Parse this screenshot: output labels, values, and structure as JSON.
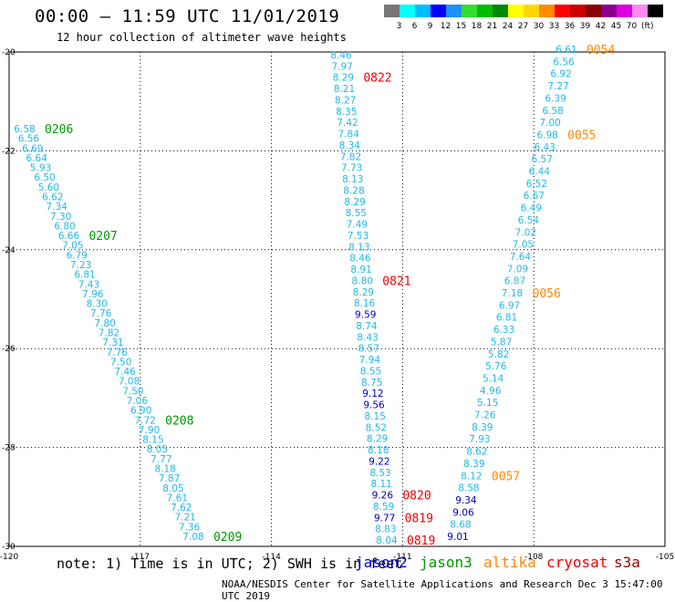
{
  "title": "00:00 – 11:59 UTC 11/01/2019",
  "subtitle": "12 hour collection of altimeter wave heights",
  "color_scale": {
    "colors": [
      "#777777",
      "#00ffff",
      "#00bfff",
      "#0000ff",
      "#1e90ff",
      "#33dd33",
      "#00bb00",
      "#008800",
      "#ffff00",
      "#ffd700",
      "#ff8c00",
      "#ff0000",
      "#cc0000",
      "#8b0000",
      "#8b008b",
      "#dd00dd",
      "#ff88ee",
      "#000000"
    ],
    "labels": [
      "3",
      "6",
      "9",
      "12",
      "15",
      "18",
      "21",
      "24",
      "27",
      "30",
      "33",
      "36",
      "39",
      "42",
      "45",
      "70",
      "(ft)"
    ]
  },
  "map": {
    "lon_ticks": [
      "-120",
      "-117",
      "-114",
      "-111",
      "-108",
      "-105"
    ],
    "lat_ticks": [
      "-20",
      "-22",
      "-24",
      "-26",
      "-28",
      "-30"
    ],
    "passes": [
      {
        "id": "jason3-west",
        "satellite": "jason3",
        "labels": [
          {
            "text": "0206",
            "after_index": 0
          },
          {
            "text": "0207",
            "after_index": 11
          },
          {
            "text": "0208",
            "after_index": 30
          },
          {
            "text": "0209",
            "after_index": 45
          }
        ],
        "values": [
          "6.58",
          "6.56",
          "6.69",
          "6.64",
          "5.93",
          "6.50",
          "5.60",
          "6.62",
          "7.34",
          "7.30",
          "6.80",
          "6.66",
          "7.05",
          "6.79",
          "7.23",
          "6.81",
          "7.43",
          "7.96",
          "8.30",
          "7.76",
          "7.80",
          "7.82",
          "7.31",
          "7.76",
          "7.50",
          "7.46",
          "7.08",
          "7.50",
          "7.06",
          "6.90",
          "7.72",
          "7.90",
          "8.15",
          "8.05",
          "7.77",
          "8.18",
          "7.87",
          "8.05",
          "7.61",
          "7.62",
          "7.21",
          "7.36",
          "7.08"
        ]
      },
      {
        "id": "jason2-middle",
        "satellite": "cryosat",
        "labels": [
          {
            "text": "0822",
            "after_index": 2
          },
          {
            "text": "0821",
            "after_index": 20
          },
          {
            "text": "0820",
            "after_index": 39
          },
          {
            "text": "0819",
            "after_index": 41
          },
          {
            "text": "0819",
            "after_index": 50
          }
        ],
        "values": [
          "8.46",
          "7.97",
          "8.29",
          "8.21",
          "8.27",
          "8.35",
          "7.42",
          "7.84",
          "8.34",
          "7.82",
          "7.73",
          "8.13",
          "8.28",
          "8.29",
          "8.55",
          "7.49",
          "7.53",
          "8.13",
          "8.46",
          "8.91",
          "8.80",
          "8.29",
          "8.16",
          "9.59",
          "8.74",
          "8.43",
          "8.57",
          "7.94",
          "8.55",
          "8.75",
          "9.12",
          "9.56",
          "8.15",
          "8.52",
          "8.29",
          "8.18",
          "9.22",
          "8.53",
          "8.11",
          "9.26",
          "8.59",
          "9.77",
          "8.83",
          "8.04"
        ]
      },
      {
        "id": "altika-east",
        "satellite": "altika",
        "labels": [
          {
            "text": "0054",
            "after_index": 0
          },
          {
            "text": "0055",
            "after_index": 7
          },
          {
            "text": "0056",
            "after_index": 20
          },
          {
            "text": "0057",
            "after_index": 35
          }
        ],
        "values": [
          "6.61",
          "6.56",
          "6.92",
          "7.27",
          "6.39",
          "6.58",
          "7.00",
          "6.98",
          "6.43",
          "6.57",
          "6.44",
          "6.52",
          "6.67",
          "6.49",
          "6.54",
          "7.02",
          "7.05",
          "7.64",
          "7.09",
          "6.87",
          "7.18",
          "6.97",
          "6.81",
          "6.33",
          "5.87",
          "5.82",
          "5.76",
          "5.14",
          "4.96",
          "5.15",
          "7.26",
          "8.39",
          "7.93",
          "8.62",
          "8.39",
          "8.12",
          "8.58",
          "9.34",
          "9.06",
          "8.68",
          "9.01"
        ]
      }
    ]
  },
  "note": "note: 1) Time is in UTC; 2) SWH is in feet",
  "satellites": [
    {
      "name": "jason2",
      "color": "#0000cc"
    },
    {
      "name": "jason3",
      "color": "#009900"
    },
    {
      "name": "altika",
      "color": "#ff8800"
    },
    {
      "name": "cryosat",
      "color": "#ee0000"
    },
    {
      "name": "s3a",
      "color": "#990000"
    }
  ],
  "footer": "NOAA/NESDIS Center for Satellite Applications and Research   Dec  3 15:47:00 UTC 2019"
}
